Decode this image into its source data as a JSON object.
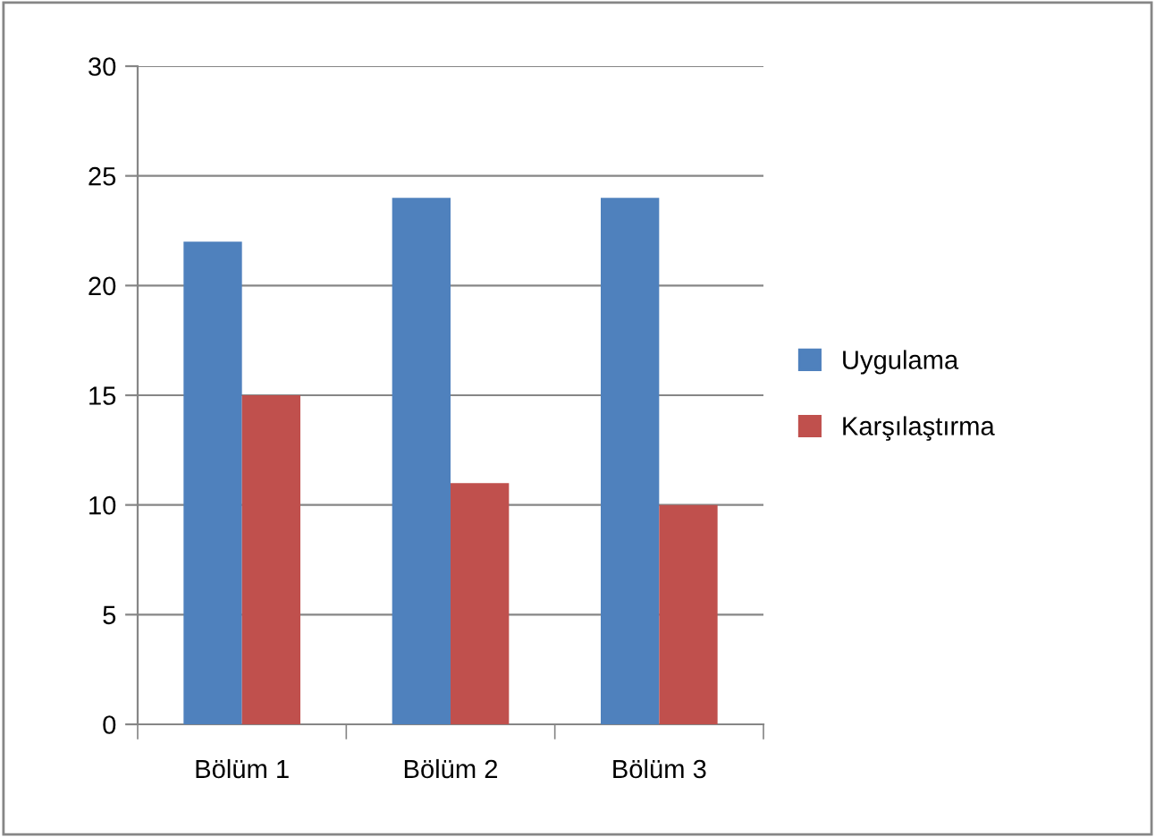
{
  "chart_data": {
    "type": "bar",
    "categories": [
      "Bölüm 1",
      "Bölüm 2",
      "Bölüm 3"
    ],
    "series": [
      {
        "name": "Uygulama",
        "color": "#4f81bd",
        "values": [
          22,
          24,
          24
        ]
      },
      {
        "name": "Karşılaştırma",
        "color": "#c0504d",
        "values": [
          15,
          11,
          10
        ]
      }
    ],
    "ylim": [
      0,
      30
    ],
    "yticks": [
      0,
      5,
      10,
      15,
      20,
      25,
      30
    ],
    "grid": "y",
    "legend": "right"
  }
}
